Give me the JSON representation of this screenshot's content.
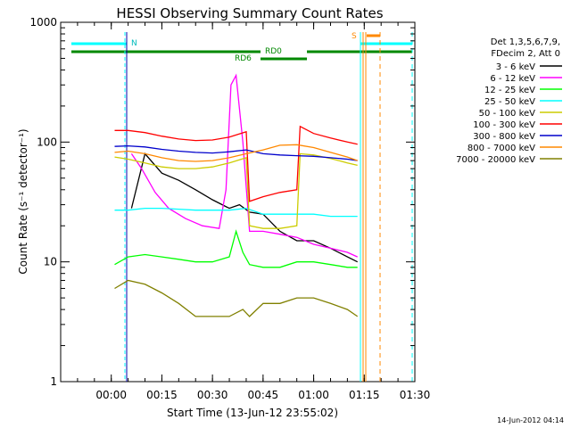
{
  "chart_data": {
    "type": "line",
    "title": "HESSI Observing Summary Count Rates",
    "xlabel": "Start Time (13-Jun-12 23:55:02)",
    "ylabel": "Count Rate (s⁻¹ detector⁻¹)",
    "ylog": true,
    "ylim": [
      1,
      1000
    ],
    "xlim": [
      -10,
      95
    ],
    "x_units": "minutes after 23:55:02",
    "x_ticks": [
      5,
      20,
      35,
      50,
      65,
      80,
      95
    ],
    "x_tick_labels": [
      "00:00",
      "00:15",
      "00:30",
      "00:45",
      "01:00",
      "01:15",
      "01:30"
    ],
    "y_ticks": [
      1,
      10,
      100,
      1000
    ],
    "y_tick_labels": [
      "1",
      "10",
      "100",
      "1000"
    ],
    "legend": {
      "placement": "right",
      "header": [
        "Det 1,3,5,6,7,9,",
        "FDecim 2, Att 0"
      ]
    },
    "series": [
      {
        "name": "3 - 6 keV",
        "color": "#000000",
        "x": [
          11,
          15,
          20,
          25,
          30,
          35,
          40,
          43,
          46,
          50,
          55,
          60,
          65,
          70,
          75,
          78
        ],
        "values": [
          28,
          80,
          55,
          48,
          40,
          33,
          28,
          30,
          26,
          25,
          18,
          15,
          15,
          13,
          11,
          10
        ]
      },
      {
        "name": "6 - 12 keV",
        "color": "#ff00ff",
        "x": [
          11,
          14,
          18,
          22,
          27,
          32,
          37,
          39,
          40.5,
          42,
          44,
          46,
          50,
          55,
          60,
          65,
          70,
          75,
          78
        ],
        "values": [
          80,
          60,
          38,
          28,
          23,
          20,
          19,
          40,
          300,
          360,
          100,
          18,
          18,
          17,
          16,
          14,
          13,
          12,
          11
        ]
      },
      {
        "name": "12 - 25 keV",
        "color": "#00ff00",
        "x": [
          6,
          10,
          15,
          20,
          25,
          30,
          35,
          40,
          42,
          44,
          46,
          50,
          55,
          60,
          65,
          70,
          75,
          78
        ],
        "values": [
          9.5,
          11,
          11.5,
          11,
          10.5,
          10,
          10,
          11,
          18,
          12,
          9.5,
          9,
          9,
          10,
          10,
          9.5,
          9,
          9
        ]
      },
      {
        "name": "25 - 50 keV",
        "color": "#00ffff",
        "x": [
          6,
          10,
          15,
          20,
          25,
          30,
          35,
          40,
          45,
          50,
          55,
          60,
          65,
          70,
          75,
          78
        ],
        "values": [
          27,
          27,
          28,
          28,
          27.5,
          27,
          27,
          27,
          28,
          25,
          25,
          25,
          25,
          24,
          24,
          24
        ]
      },
      {
        "name": "50 - 100 keV",
        "color": "#cccc00",
        "x": [
          6,
          10,
          15,
          20,
          25,
          30,
          35,
          40,
          45,
          46,
          50,
          55,
          60,
          61,
          65,
          70,
          75,
          78
        ],
        "values": [
          75,
          72,
          67,
          62,
          60,
          60,
          62,
          67,
          74,
          20,
          19,
          19,
          20,
          80,
          78,
          73,
          67,
          64
        ]
      },
      {
        "name": "100 - 300 keV",
        "color": "#ff0000",
        "x": [
          6,
          10,
          15,
          20,
          25,
          30,
          35,
          40,
          45,
          46,
          50,
          55,
          60,
          61,
          65,
          70,
          75,
          78
        ],
        "values": [
          125,
          125,
          120,
          112,
          106,
          103,
          104,
          110,
          122,
          32,
          35,
          38,
          40,
          135,
          118,
          108,
          100,
          96
        ]
      },
      {
        "name": "300 - 800 keV",
        "color": "#0000cc",
        "x": [
          6,
          10,
          15,
          20,
          25,
          30,
          35,
          40,
          45,
          50,
          55,
          60,
          65,
          70,
          75,
          78
        ],
        "values": [
          92,
          93,
          91,
          87,
          84,
          82,
          81,
          83,
          86,
          80,
          78,
          77,
          76,
          74,
          72,
          70
        ]
      },
      {
        "name": "800 - 7000 keV",
        "color": "#ff8800",
        "x": [
          6,
          10,
          15,
          20,
          25,
          30,
          35,
          40,
          45,
          50,
          55,
          60,
          65,
          70,
          75,
          78
        ],
        "values": [
          82,
          84,
          80,
          74,
          70,
          69,
          70,
          74,
          80,
          86,
          94,
          95,
          90,
          82,
          75,
          70
        ]
      },
      {
        "name": "7000 - 20000 keV",
        "color": "#808000",
        "x": [
          6,
          10,
          15,
          20,
          25,
          30,
          35,
          40,
          44,
          46,
          50,
          55,
          60,
          65,
          70,
          75,
          78
        ],
        "values": [
          6,
          7,
          6.5,
          5.5,
          4.5,
          3.5,
          3.5,
          3.5,
          4,
          3.5,
          4.5,
          4.5,
          5,
          5,
          4.5,
          4,
          3.5
        ]
      }
    ],
    "annotations": {
      "n_label": "N",
      "s_label": "S",
      "rd0_label": "RD0",
      "rd6_label": "RD6"
    }
  },
  "footer": {
    "timestamp": "14-Jun-2012 04:14"
  }
}
